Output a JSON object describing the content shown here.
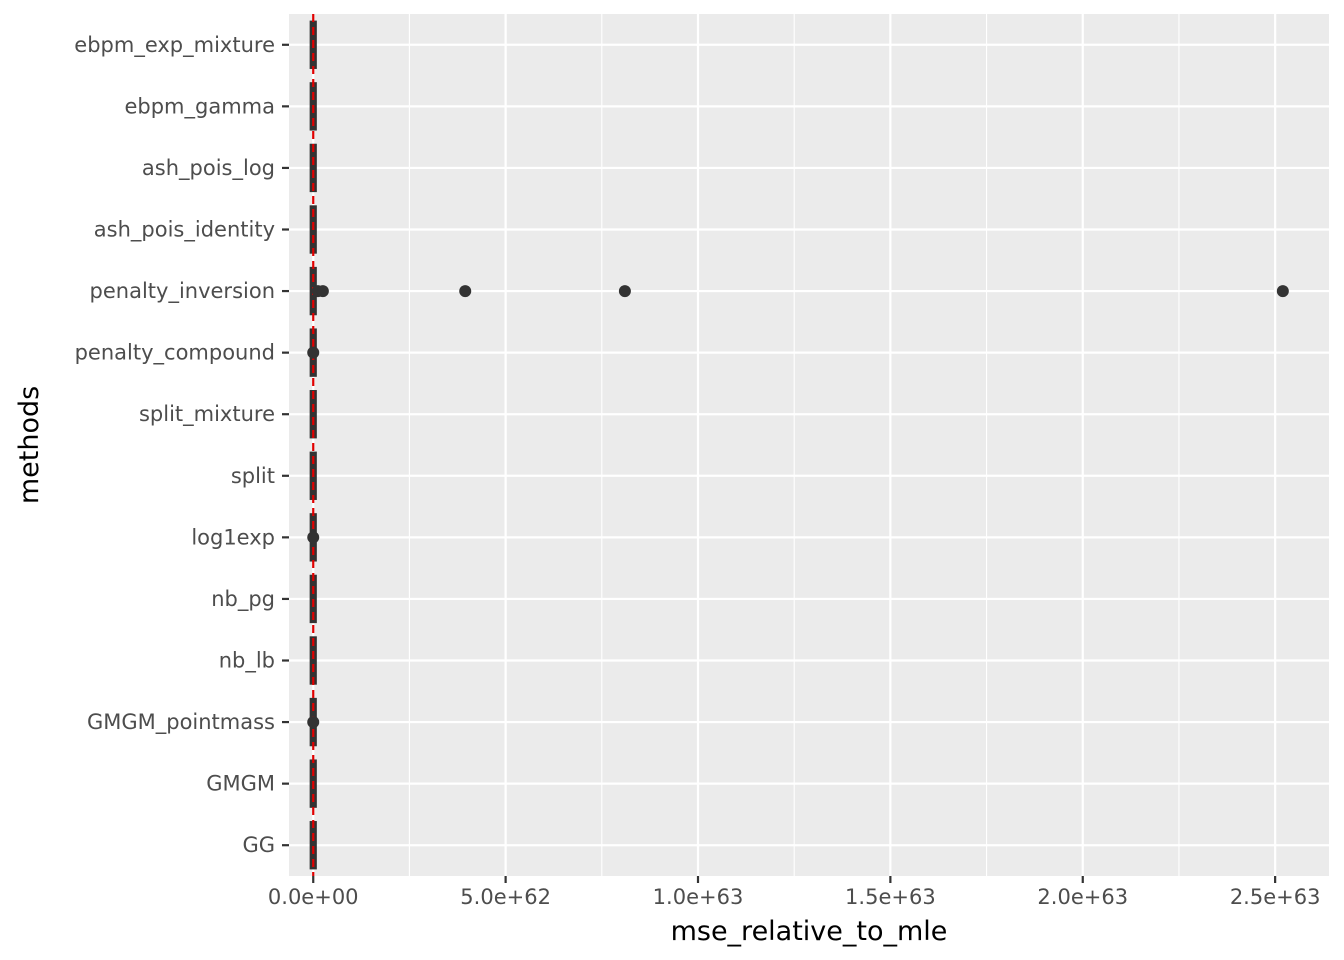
{
  "chart_data": {
    "type": "boxplot",
    "xlabel": "mse_relative_to_mle",
    "ylabel": "methods",
    "categories": [
      "ebpm_exp_mixture",
      "ebpm_gamma",
      "ash_pois_log",
      "ash_pois_identity",
      "penalty_inversion",
      "penalty_compound",
      "split_mixture",
      "split",
      "log1exp",
      "nb_pg",
      "nb_lb",
      "GMGM_pointmass",
      "GMGM",
      "GG"
    ],
    "x_ticks": [
      0,
      5e+62,
      1e+63,
      1.5e+63,
      2e+63,
      2.5e+63
    ],
    "x_tick_labels": [
      "0.0e+00",
      "5.0e+62",
      "1.0e+63",
      "1.5e+63",
      "2.0e+63",
      "2.5e+63"
    ],
    "xlim": [
      -6.3e+61,
      2.64e+63
    ],
    "reference_line": {
      "x": 0,
      "color": "#e00000",
      "style": "dashed"
    },
    "outliers": [
      {
        "category": "penalty_inversion",
        "x": 1.2e+61
      },
      {
        "category": "penalty_inversion",
        "x": 2.5e+61
      },
      {
        "category": "penalty_inversion",
        "x": 3.95e+62
      },
      {
        "category": "penalty_inversion",
        "x": 8.1e+62
      },
      {
        "category": "penalty_inversion",
        "x": 2.52e+63
      },
      {
        "category": "penalty_compound",
        "x": 0
      },
      {
        "category": "log1exp",
        "x": 0
      },
      {
        "category": "GMGM_pointmass",
        "x": 0
      }
    ],
    "grid": true,
    "colors": {
      "panel": "#ebebeb",
      "grid": "#ffffff",
      "box": "#333333",
      "points": "#333333",
      "reference": "#e00000"
    }
  }
}
